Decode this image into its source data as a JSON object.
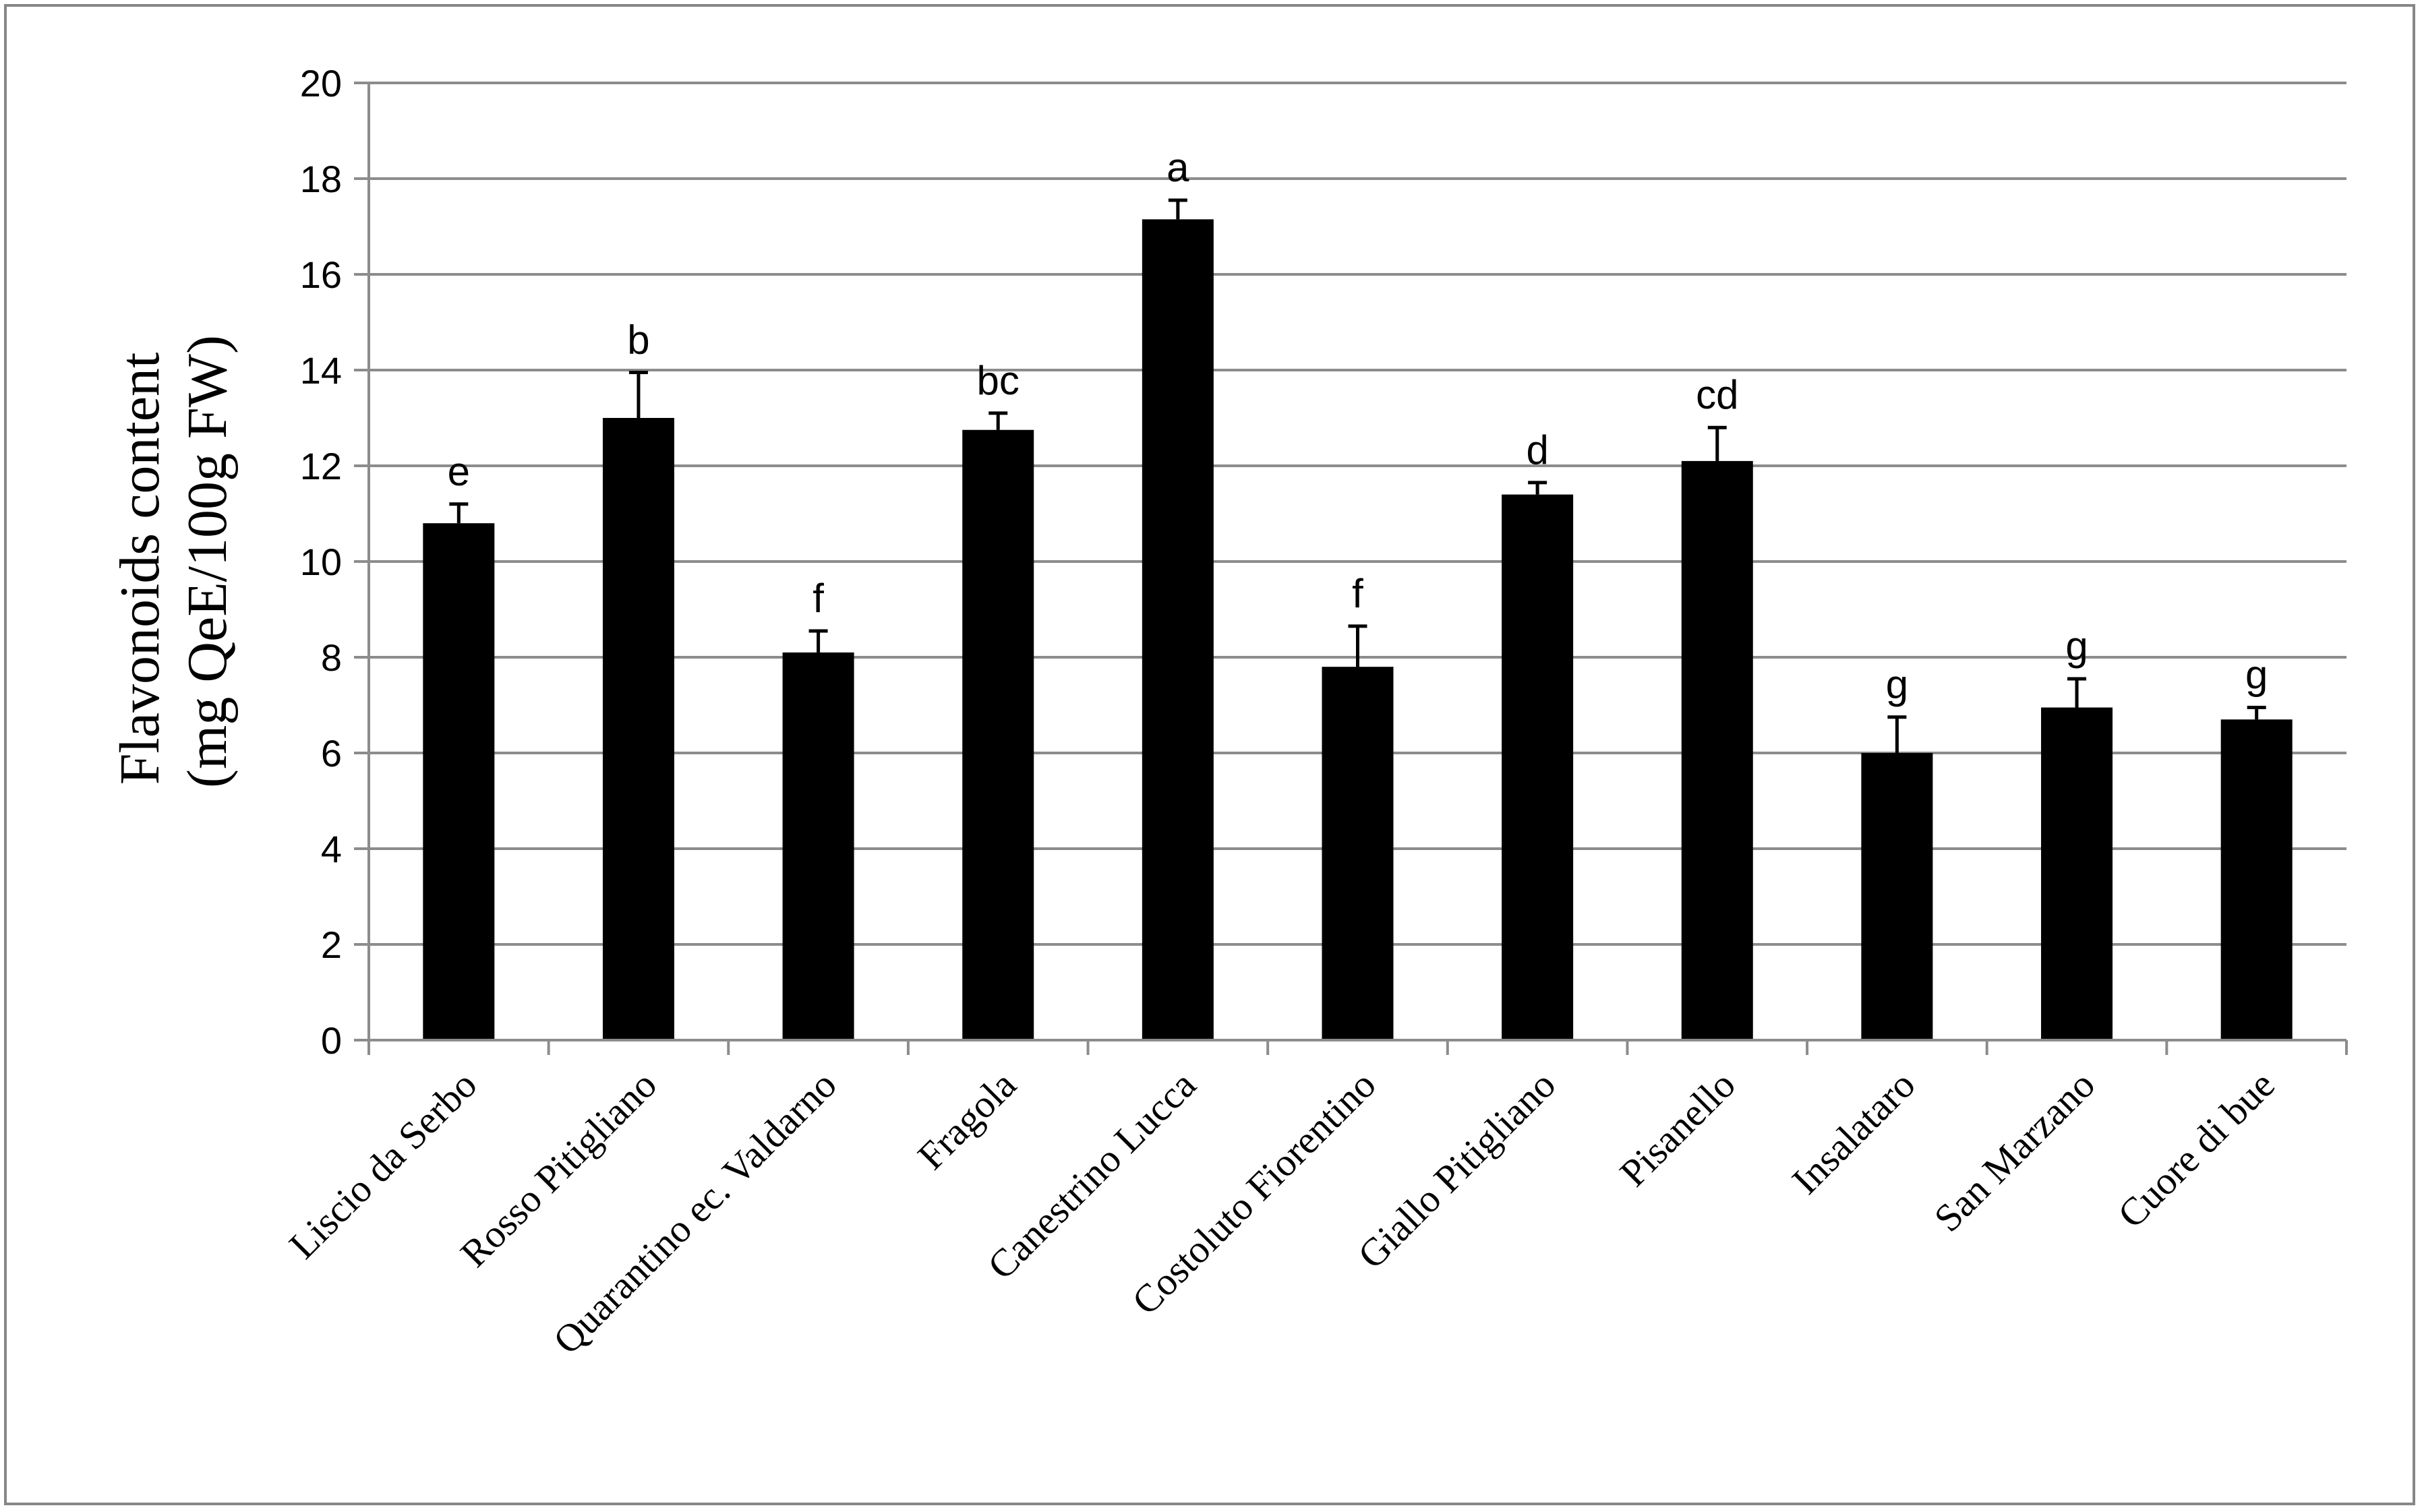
{
  "chart_data": {
    "type": "bar",
    "title": "",
    "xlabel": "",
    "ylabel_lines": [
      "Flavonoids content",
      "(mg QeE/100g FW)"
    ],
    "ylim": [
      0,
      20
    ],
    "yticks": [
      0,
      2,
      4,
      6,
      8,
      10,
      12,
      14,
      16,
      18,
      20
    ],
    "grid": true,
    "bar_color": "#000000",
    "grid_color": "#8c8c8c",
    "categories": [
      "Liscio da Serbo",
      "Rosso Pitigliano",
      "Quarantino ec. Valdarno",
      "Fragola",
      "Canestrino Lucca",
      "Costoluto Fiorentino",
      "Giallo Pitigliano",
      "Pisanello",
      "Insalataro",
      "San Marzano",
      "Cuore di bue"
    ],
    "values": [
      10.8,
      13.0,
      8.1,
      12.75,
      17.15,
      7.8,
      11.4,
      12.1,
      6.0,
      6.95,
      6.7
    ],
    "errors": [
      0.4,
      0.95,
      0.45,
      0.35,
      0.4,
      0.85,
      0.25,
      0.7,
      0.75,
      0.6,
      0.25
    ],
    "significance_letters": [
      "e",
      "b",
      "f",
      "bc",
      "a",
      "f",
      "d",
      "cd",
      "g",
      "g",
      "g"
    ]
  }
}
